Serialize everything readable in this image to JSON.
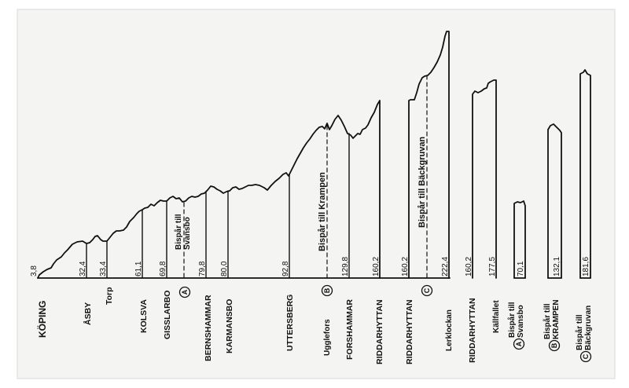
{
  "colors": {
    "ink": "#111111",
    "paper": "#f4f4f2",
    "border": "#ffffff"
  },
  "diagram": {
    "main_stations": [
      {
        "name": "KÖPING",
        "km": "3,8"
      },
      {
        "name": "ÅSBY",
        "km": "32,4"
      },
      {
        "name": "Torp",
        "km": "33,4"
      },
      {
        "name": "KOLSVA",
        "km": "61,1"
      },
      {
        "name": "GISSLARBO",
        "km": "69,8"
      },
      {
        "name": "BERNSHAMMAR",
        "km": "79,8"
      },
      {
        "name": "KARMANSBO",
        "km": "80,0"
      },
      {
        "name": "UTTERSBERG",
        "km": "92,8"
      },
      {
        "name": "Ugglefors",
        "km": ""
      },
      {
        "name": "FORSHAMMAR",
        "km": "129,8"
      },
      {
        "name": "RIDDARHYTTAN",
        "km": "160,2"
      }
    ],
    "branch_A_label": "Bispår till Svansbo",
    "branch_B_label": "Bispår till Krampen",
    "branch_C_label": "Bispår till Bäckgruvan",
    "circle_A": "A",
    "circle_B": "B",
    "circle_C": "C",
    "section2": {
      "start_name": "RIDDARHYTTAN",
      "start_km": "160,2",
      "end_name": "Lerklockan",
      "end_km": "222,4"
    },
    "section3": {
      "start_name": "RIDDARHYTTAN",
      "start_km": "160,2",
      "end_name": "Källfallet",
      "end_km": "177,5"
    },
    "branches": [
      {
        "circle": "A",
        "line1": "Bispår till",
        "line2": "Svansbo",
        "km": "70,1"
      },
      {
        "circle": "B",
        "line1": "Bispår till",
        "line2": "KRAMPEN",
        "km": "132,1"
      },
      {
        "circle": "C",
        "line1": "Bispår till",
        "line2": "Bäckgruvan",
        "km": "181,6"
      }
    ]
  }
}
